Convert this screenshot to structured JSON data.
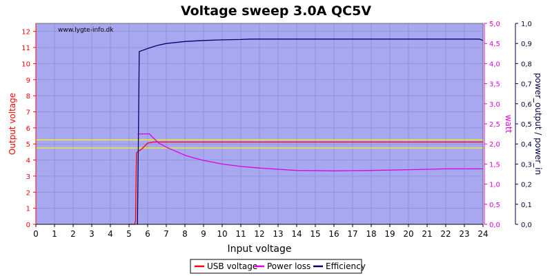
{
  "chart_data": {
    "type": "line",
    "title": "Voltage sweep 3.0A QC5V",
    "watermark": "www.lygte-info.dk",
    "xlabel": "Input voltage",
    "xlim": [
      0,
      24
    ],
    "x_ticks": [
      "0",
      "1",
      "2",
      "3",
      "4",
      "5",
      "6",
      "7",
      "8",
      "9",
      "10",
      "11",
      "12",
      "13",
      "14",
      "15",
      "16",
      "17",
      "18",
      "19",
      "20",
      "21",
      "22",
      "23",
      "24"
    ],
    "y_left": {
      "label": "Output voltage",
      "lim": [
        0,
        12.5
      ],
      "ticks": [
        "0",
        "1",
        "2",
        "3",
        "4",
        "5",
        "6",
        "7",
        "8",
        "9",
        "10",
        "11",
        "12"
      ],
      "color": "#ff0000"
    },
    "y_right1": {
      "label": "watt",
      "lim": [
        0,
        5.0
      ],
      "ticks": [
        "0,0",
        "0,5",
        "1,0",
        "1,5",
        "2,0",
        "2,5",
        "3,0",
        "3,5",
        "4,0",
        "4,5",
        "5,0"
      ],
      "color": "#dd00dd"
    },
    "y_right2": {
      "label": "power_output / power_in",
      "lim": [
        0,
        1.0
      ],
      "ticks": [
        "0,0",
        "0,1",
        "0,2",
        "0,3",
        "0,4",
        "0,5",
        "0,6",
        "0,7",
        "0,8",
        "0,9",
        "1,0"
      ],
      "color": "#000044"
    },
    "reference_lines": [
      {
        "axis": "left",
        "y": 5.25,
        "color": "#ffff00"
      },
      {
        "axis": "left",
        "y": 4.75,
        "color": "#ffff00"
      }
    ],
    "grid": true,
    "plot_background": "#a8a8f0",
    "legend_position": "bottom-center",
    "series": [
      {
        "name": "USB voltage",
        "axis": "left",
        "color": "#ff0000",
        "x": [
          5.0,
          5.3,
          5.35,
          5.4,
          5.7,
          6.0,
          6.3,
          7,
          8,
          10,
          12,
          14,
          16,
          18,
          20,
          22,
          24
        ],
        "y": [
          0,
          0,
          0.2,
          4.45,
          4.7,
          5.05,
          5.12,
          5.12,
          5.12,
          5.12,
          5.12,
          5.12,
          5.12,
          5.12,
          5.12,
          5.12,
          5.12
        ]
      },
      {
        "name": "Power loss",
        "axis": "right1",
        "color": "#dd00dd",
        "x": [
          5.45,
          5.8,
          6.1,
          6.3,
          6.6,
          7,
          7.5,
          8,
          8.5,
          9,
          10,
          11,
          12,
          13,
          14,
          16,
          18,
          20,
          22,
          24
        ],
        "y": [
          2.25,
          2.25,
          2.25,
          2.15,
          2.02,
          1.92,
          1.82,
          1.72,
          1.65,
          1.59,
          1.5,
          1.44,
          1.4,
          1.37,
          1.34,
          1.33,
          1.34,
          1.36,
          1.38,
          1.38
        ]
      },
      {
        "name": "Efficiency",
        "axis": "right2",
        "color": "#000066",
        "x": [
          5.45,
          5.5,
          5.55,
          6,
          6.5,
          7,
          8,
          9,
          10,
          11,
          11.5,
          12,
          14,
          16,
          18,
          20,
          22,
          23.8,
          24
        ],
        "y": [
          0,
          0.4,
          0.86,
          0.875,
          0.89,
          0.9,
          0.91,
          0.915,
          0.918,
          0.92,
          0.922,
          0.922,
          0.922,
          0.922,
          0.922,
          0.922,
          0.922,
          0.922,
          0.915
        ]
      }
    ]
  }
}
